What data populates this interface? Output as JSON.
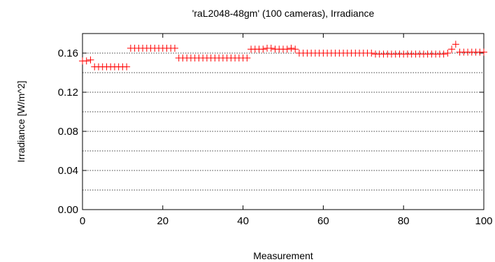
{
  "chart_data": {
    "type": "scatter",
    "title": "'raL2048-48gm' (100 cameras), Irradiance",
    "xlabel": "Measurement",
    "ylabel": "Irradiance [W/m^2]",
    "xlim": [
      0,
      100
    ],
    "ylim": [
      0,
      0.18
    ],
    "xticks": [
      0,
      20,
      40,
      60,
      80,
      100
    ],
    "xtick_labels": [
      "0",
      "20",
      "40",
      "60",
      "80",
      "100"
    ],
    "yticks": [
      0,
      0.04,
      0.08,
      0.12,
      0.16
    ],
    "ytick_labels": [
      "0.00",
      "0.04",
      "0.08",
      "0.12",
      "0.16"
    ],
    "ygrid": [
      0.02,
      0.04,
      0.06,
      0.08,
      0.1,
      0.12,
      0.14,
      0.16
    ],
    "grid": true,
    "marker": "+",
    "marker_color": "#ff0000",
    "series": [
      {
        "x": [
          0,
          1,
          2,
          3,
          4,
          5,
          6,
          7,
          8,
          9,
          10,
          11,
          12,
          13,
          14,
          15,
          16,
          17,
          18,
          19,
          20,
          21,
          22,
          23,
          24,
          25,
          26,
          27,
          28,
          29,
          30,
          31,
          32,
          33,
          34,
          35,
          36,
          37,
          38,
          39,
          40,
          41,
          42,
          43,
          44,
          45,
          46,
          47,
          48,
          49,
          50,
          51,
          52,
          53,
          54,
          55,
          56,
          57,
          58,
          59,
          60,
          61,
          62,
          63,
          64,
          65,
          66,
          67,
          68,
          69,
          70,
          71,
          72,
          73,
          74,
          75,
          76,
          77,
          78,
          79,
          80,
          81,
          82,
          83,
          84,
          85,
          86,
          87,
          88,
          89,
          90,
          91,
          92,
          93,
          94,
          95,
          96,
          97,
          98,
          99,
          100
        ],
        "y": [
          0.152,
          0.152,
          0.153,
          0.146,
          0.146,
          0.146,
          0.146,
          0.146,
          0.146,
          0.146,
          0.146,
          0.146,
          0.165,
          0.165,
          0.165,
          0.165,
          0.165,
          0.165,
          0.165,
          0.165,
          0.165,
          0.165,
          0.165,
          0.165,
          0.155,
          0.155,
          0.155,
          0.155,
          0.155,
          0.155,
          0.155,
          0.155,
          0.155,
          0.155,
          0.155,
          0.155,
          0.155,
          0.155,
          0.155,
          0.155,
          0.155,
          0.155,
          0.164,
          0.164,
          0.164,
          0.164,
          0.165,
          0.165,
          0.164,
          0.164,
          0.164,
          0.164,
          0.165,
          0.164,
          0.16,
          0.16,
          0.16,
          0.16,
          0.16,
          0.16,
          0.16,
          0.16,
          0.16,
          0.16,
          0.16,
          0.16,
          0.16,
          0.16,
          0.16,
          0.16,
          0.16,
          0.16,
          0.16,
          0.159,
          0.159,
          0.159,
          0.159,
          0.159,
          0.159,
          0.159,
          0.159,
          0.159,
          0.159,
          0.159,
          0.159,
          0.159,
          0.159,
          0.159,
          0.159,
          0.159,
          0.159,
          0.16,
          0.164,
          0.169,
          0.161,
          0.161,
          0.161,
          0.161,
          0.161,
          0.161,
          0.161
        ]
      }
    ]
  }
}
